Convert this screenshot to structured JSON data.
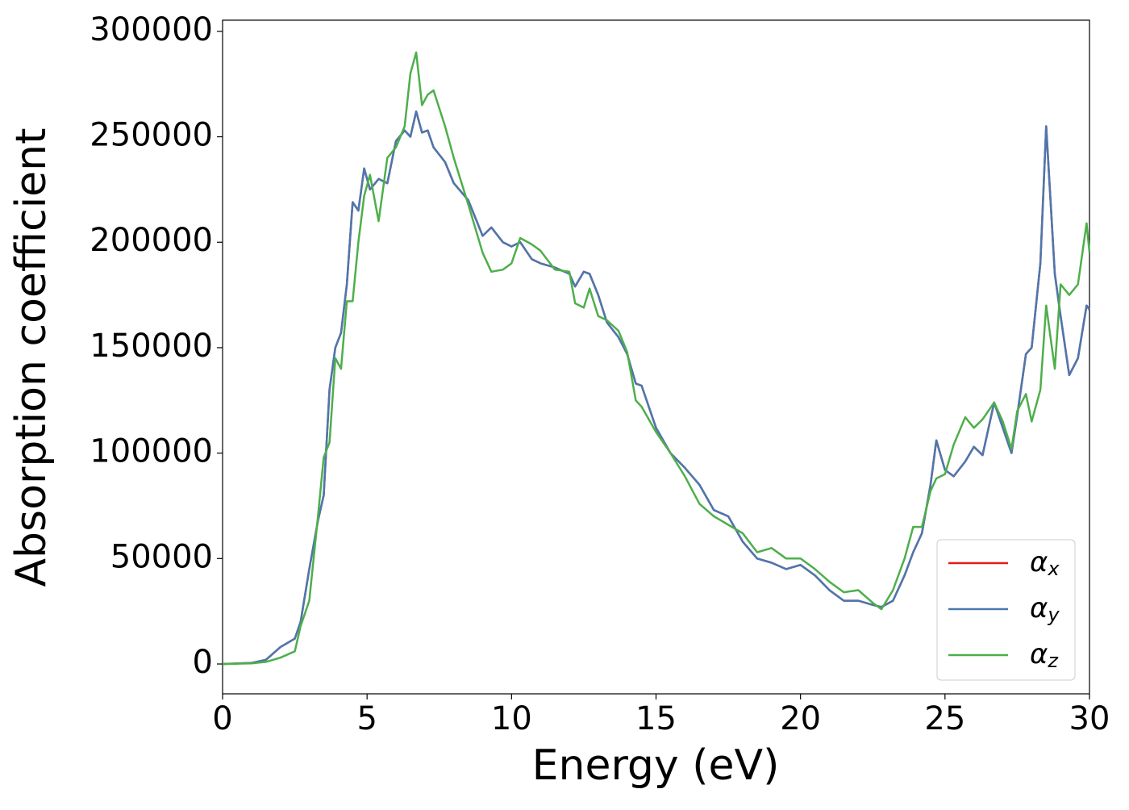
{
  "chart_data": {
    "type": "line",
    "xlabel": "Energy (eV)",
    "ylabel": "Absorption coefficient",
    "x": [
      0,
      1,
      1.5,
      2,
      2.5,
      2.7,
      3,
      3.3,
      3.5,
      3.7,
      3.9,
      4.1,
      4.3,
      4.5,
      4.7,
      4.9,
      5.1,
      5.4,
      5.7,
      6,
      6.3,
      6.5,
      6.7,
      6.9,
      7.1,
      7.3,
      7.7,
      8,
      8.5,
      9,
      9.3,
      9.7,
      10,
      10.3,
      10.7,
      11,
      11.5,
      12,
      12.2,
      12.5,
      12.7,
      13,
      13.3,
      13.7,
      14,
      14.3,
      14.5,
      15,
      15.5,
      16,
      16.5,
      17,
      17.5,
      18,
      18.5,
      19,
      19.5,
      20,
      20.5,
      21,
      21.5,
      22,
      22.5,
      22.8,
      23.2,
      23.6,
      23.9,
      24.2,
      24.5,
      24.7,
      25,
      25.3,
      25.7,
      26,
      26.3,
      26.7,
      27,
      27.3,
      27.5,
      27.8,
      28,
      28.3,
      28.5,
      28.8,
      29,
      29.3,
      29.6,
      29.9,
      30
    ],
    "series": [
      {
        "name": "αx",
        "color": "#e41a1c",
        "values": [
          0,
          500,
          2000,
          8000,
          12000,
          20000,
          45000,
          68000,
          80000,
          130000,
          150000,
          157000,
          180000,
          219000,
          215000,
          235000,
          225000,
          230000,
          228000,
          248000,
          253000,
          250000,
          262000,
          252000,
          253000,
          245000,
          238000,
          228000,
          220000,
          203000,
          207000,
          200000,
          198000,
          200000,
          192000,
          190000,
          188000,
          185000,
          179000,
          186000,
          185000,
          175000,
          162000,
          155000,
          147000,
          133000,
          132000,
          112000,
          100000,
          93000,
          85000,
          73000,
          70000,
          58000,
          50000,
          48000,
          45000,
          47000,
          42000,
          35000,
          30000,
          30000,
          28000,
          27000,
          30000,
          42000,
          53000,
          62000,
          85000,
          106000,
          92000,
          89000,
          96000,
          103000,
          99000,
          124000,
          112000,
          100000,
          118000,
          147000,
          150000,
          190000,
          255000,
          185000,
          165000,
          137000,
          145000,
          170000,
          168000
        ]
      },
      {
        "name": "αy",
        "color": "#4a78b0",
        "values": [
          0,
          500,
          2000,
          8000,
          12000,
          20000,
          45000,
          68000,
          80000,
          130000,
          150000,
          157000,
          180000,
          219000,
          215000,
          235000,
          225000,
          230000,
          228000,
          248000,
          253000,
          250000,
          262000,
          252000,
          253000,
          245000,
          238000,
          228000,
          220000,
          203000,
          207000,
          200000,
          198000,
          200000,
          192000,
          190000,
          188000,
          185000,
          179000,
          186000,
          185000,
          175000,
          162000,
          155000,
          147000,
          133000,
          132000,
          112000,
          100000,
          93000,
          85000,
          73000,
          70000,
          58000,
          50000,
          48000,
          45000,
          47000,
          42000,
          35000,
          30000,
          30000,
          28000,
          27000,
          30000,
          42000,
          53000,
          62000,
          85000,
          106000,
          92000,
          89000,
          96000,
          103000,
          99000,
          124000,
          112000,
          100000,
          118000,
          147000,
          150000,
          190000,
          255000,
          185000,
          165000,
          137000,
          145000,
          170000,
          168000
        ]
      },
      {
        "name": "αz",
        "color": "#4daf4a",
        "values": [
          0,
          300,
          1000,
          3000,
          6000,
          18000,
          30000,
          70000,
          98000,
          105000,
          145000,
          140000,
          172000,
          172000,
          200000,
          222000,
          232000,
          210000,
          240000,
          245000,
          255000,
          280000,
          290000,
          265000,
          270000,
          272000,
          255000,
          240000,
          218000,
          195000,
          186000,
          187000,
          190000,
          202000,
          199000,
          196000,
          187000,
          186000,
          171000,
          169000,
          178000,
          165000,
          163000,
          158000,
          148000,
          125000,
          122000,
          110000,
          100000,
          89000,
          76000,
          70000,
          66000,
          62000,
          53000,
          55000,
          50000,
          50000,
          45000,
          39000,
          34000,
          35000,
          29000,
          26000,
          35000,
          50000,
          65000,
          65000,
          82000,
          88000,
          90000,
          104000,
          117000,
          112000,
          116000,
          124000,
          115000,
          102000,
          120000,
          128000,
          115000,
          130000,
          170000,
          140000,
          180000,
          175000,
          180000,
          209000,
          195000
        ]
      }
    ],
    "xlim": [
      0,
      30
    ],
    "xticks": [
      0,
      5,
      10,
      15,
      20,
      25,
      30
    ],
    "ylim": [
      -14150,
      305300
    ],
    "yticks": [
      0,
      50000,
      100000,
      150000,
      200000,
      250000,
      300000
    ],
    "legend": "lower right"
  }
}
